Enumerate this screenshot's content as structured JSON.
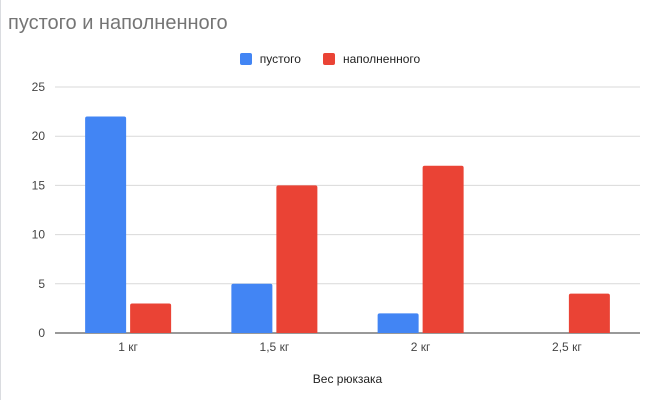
{
  "chart_data": {
    "type": "bar",
    "title": "пустого и наполненного",
    "xlabel": "Вес рюкзака",
    "ylabel": "",
    "categories": [
      "1 кг",
      "1,5 кг",
      "2 кг",
      "2,5 кг"
    ],
    "series": [
      {
        "name": "пустого",
        "color": "#4285f4",
        "values": [
          22,
          5,
          2,
          0
        ]
      },
      {
        "name": "наполненного",
        "color": "#ea4335",
        "values": [
          3,
          15,
          17,
          4
        ]
      }
    ],
    "ylim": [
      0,
      25
    ],
    "yticks": [
      0,
      5,
      10,
      15,
      20,
      25
    ],
    "grid": true,
    "legend": "top"
  }
}
